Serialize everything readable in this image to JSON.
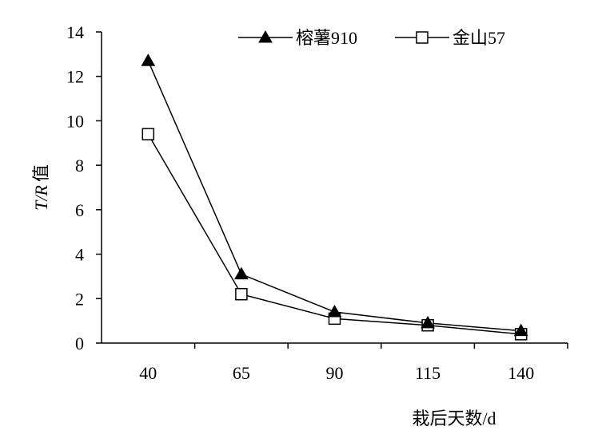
{
  "chart_data": {
    "type": "line",
    "title": "",
    "categories": [
      "40",
      "65",
      "90",
      "115",
      "140"
    ],
    "series": [
      {
        "name": "榕薯910",
        "values": [
          12.7,
          3.1,
          1.4,
          0.9,
          0.55
        ],
        "marker": "filled-triangle",
        "color": "#000000"
      },
      {
        "name": "金山57",
        "values": [
          9.4,
          2.2,
          1.1,
          0.8,
          0.4
        ],
        "marker": "open-square",
        "color": "#000000"
      }
    ],
    "ylabel_italic": "T/R",
    "ylabel_suffix": "值",
    "xlabel": "栽后天数/d",
    "ylim": [
      0,
      14
    ],
    "yticks": [
      "0",
      "2",
      "4",
      "6",
      "8",
      "10",
      "12",
      "14"
    ],
    "grid": false,
    "legend": "top-right"
  }
}
